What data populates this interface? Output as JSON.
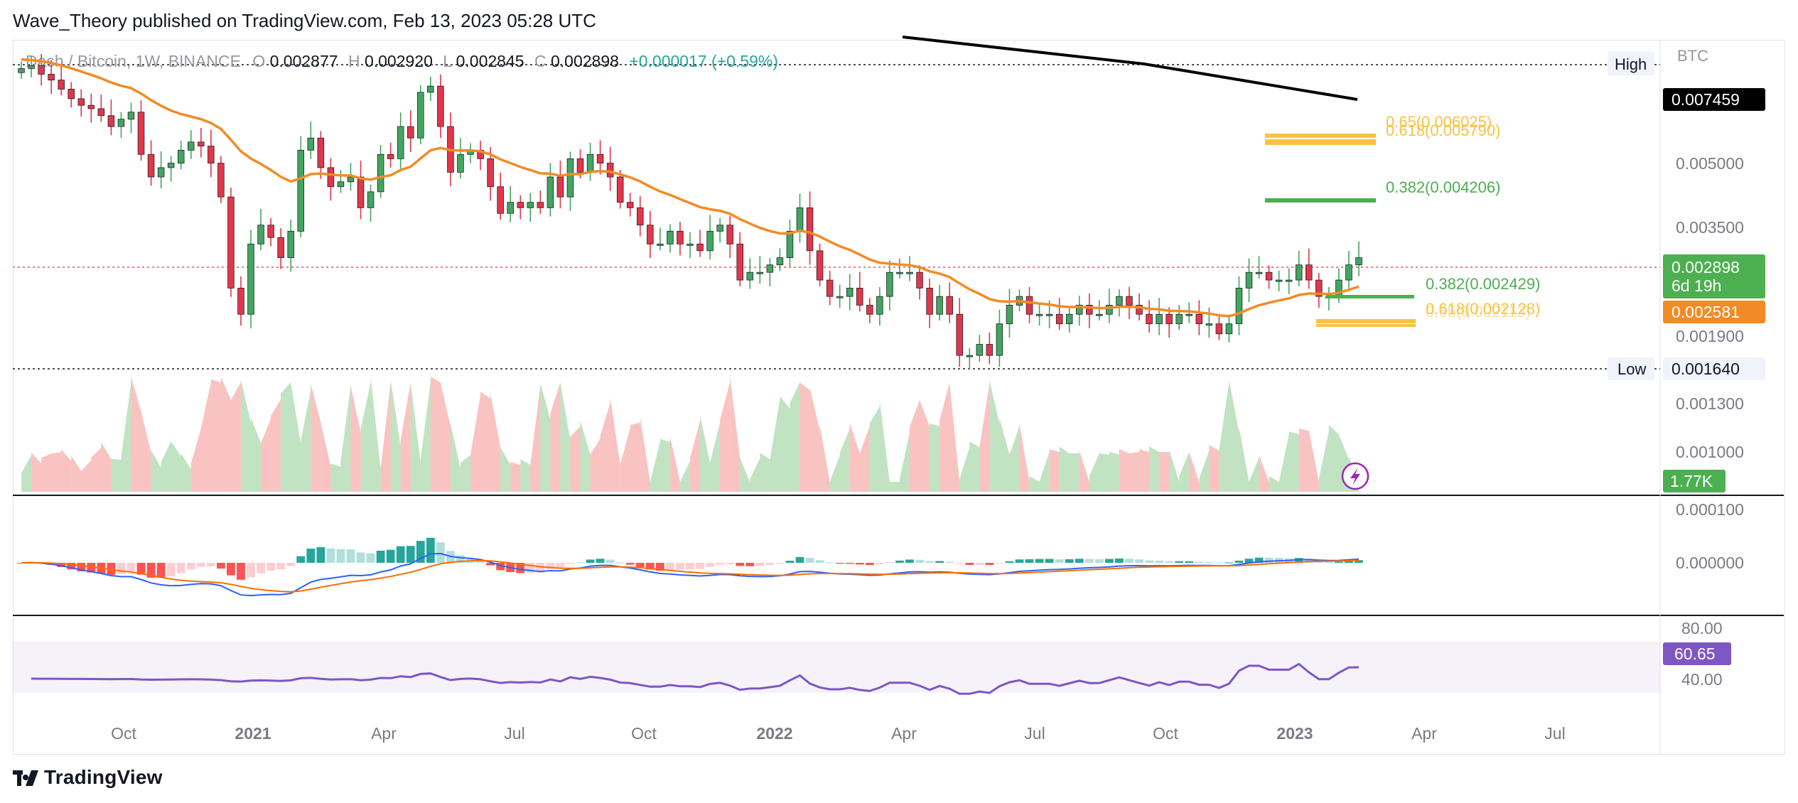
{
  "header": {
    "publisher_line": "Wave_Theory published on TradingView.com, Feb 13, 2023 05:28 UTC"
  },
  "legend": {
    "symbol": "Dash / Bitcoin, 1W, BINANCE",
    "o_label": "O",
    "o": "0.002877",
    "h_label": "H",
    "h": "0.002920",
    "l_label": "L",
    "l": "0.002845",
    "c_label": "C",
    "c": "0.002898",
    "change": "+0.000017 (+0.59%)"
  },
  "badges": {
    "high_label": "High",
    "high_value": "0.007459",
    "low_label": "Low",
    "low_value": "0.001640",
    "price_value": "0.002898",
    "countdown": "6d 19h",
    "ema_value": "0.002581",
    "volume_value": "1.77K",
    "rsi_value": "60.65",
    "currency": "BTC"
  },
  "colors": {
    "up": "#26a69a",
    "down": "#ef5350",
    "up_candle": "#43a55f",
    "down_candle": "#e2364a",
    "ema": "#f28b26",
    "fib_green": "#4caf50",
    "fib_yellow": "#f6c343",
    "macd": "#2962ff",
    "signal": "#ff6d00",
    "rsi": "#7e57c2",
    "black_ma": "#000000"
  },
  "fib_labels": {
    "upper_65": "0.65(0.006025)",
    "upper_618": "0.618(0.005790)",
    "upper_382": "0.382(0.004206)",
    "lower_382": "0.382(0.002429)",
    "lower_618": "0.618(0.002128)",
    "lower_65": "0.65(0.002113)"
  },
  "footer": {
    "logo_text": "TradingView"
  },
  "chart_data": [
    {
      "type": "candlestick",
      "title": "Dash / Bitcoin, 1W, BINANCE",
      "x_ticks": [
        "Oct",
        "2021",
        "Apr",
        "Jul",
        "Oct",
        "2022",
        "Apr",
        "Jul",
        "Oct",
        "2023",
        "Apr",
        "Jul"
      ],
      "y_ticks": [
        "0.005000",
        "0.003500",
        "0.001900",
        "0.001300",
        "0.001000"
      ],
      "ylim": [
        0.0009,
        0.008
      ],
      "scale": "log",
      "close": [
        0.0073,
        0.0074,
        0.0071,
        0.0069,
        0.0066,
        0.0063,
        0.0061,
        0.006,
        0.0058,
        0.0055,
        0.0057,
        0.0059,
        0.0048,
        0.0043,
        0.0045,
        0.0046,
        0.0049,
        0.0051,
        0.005,
        0.0046,
        0.0039,
        0.0025,
        0.0022,
        0.0031,
        0.0034,
        0.0032,
        0.0029,
        0.0033,
        0.0049,
        0.0052,
        0.0045,
        0.0041,
        0.0042,
        0.0043,
        0.0037,
        0.004,
        0.0048,
        0.0047,
        0.0055,
        0.0052,
        0.0065,
        0.0067,
        0.0055,
        0.0044,
        0.0048,
        0.0049,
        0.0047,
        0.0041,
        0.0036,
        0.0038,
        0.0037,
        0.0038,
        0.0037,
        0.0043,
        0.0039,
        0.0047,
        0.0044,
        0.0048,
        0.0046,
        0.0043,
        0.0038,
        0.0037,
        0.0034,
        0.0031,
        0.0031,
        0.0033,
        0.0031,
        0.0031,
        0.003,
        0.0033,
        0.0034,
        0.0031,
        0.0026,
        0.0027,
        0.0027,
        0.0028,
        0.0029,
        0.0033,
        0.0037,
        0.003,
        0.0026,
        0.0024,
        0.0024,
        0.0025,
        0.0023,
        0.0022,
        0.0024,
        0.0027,
        0.0027,
        0.0027,
        0.0025,
        0.0022,
        0.0024,
        0.0022,
        0.0018,
        0.0018,
        0.0019,
        0.0018,
        0.0021,
        0.0023,
        0.0024,
        0.0022,
        0.0022,
        0.0022,
        0.0021,
        0.0022,
        0.0023,
        0.0022,
        0.0022,
        0.0023,
        0.0024,
        0.0023,
        0.0022,
        0.0021,
        0.0022,
        0.0021,
        0.0022,
        0.0022,
        0.0021,
        0.0021,
        0.002,
        0.0021,
        0.0025,
        0.0027,
        0.0027,
        0.0026,
        0.0026,
        0.0026,
        0.0028,
        0.0026,
        0.0024,
        0.0024,
        0.0026,
        0.0028,
        0.0029
      ],
      "ema_last": 0.002581,
      "volume_last": "1.77K",
      "rsi_last": 60.65,
      "rsi_levels": [
        80.0,
        40.0
      ],
      "macd_axis": [
        "0.000100",
        "0.000000"
      ],
      "series": [
        {
          "name": "Dash / Bitcoin",
          "values": "close"
        }
      ]
    }
  ]
}
